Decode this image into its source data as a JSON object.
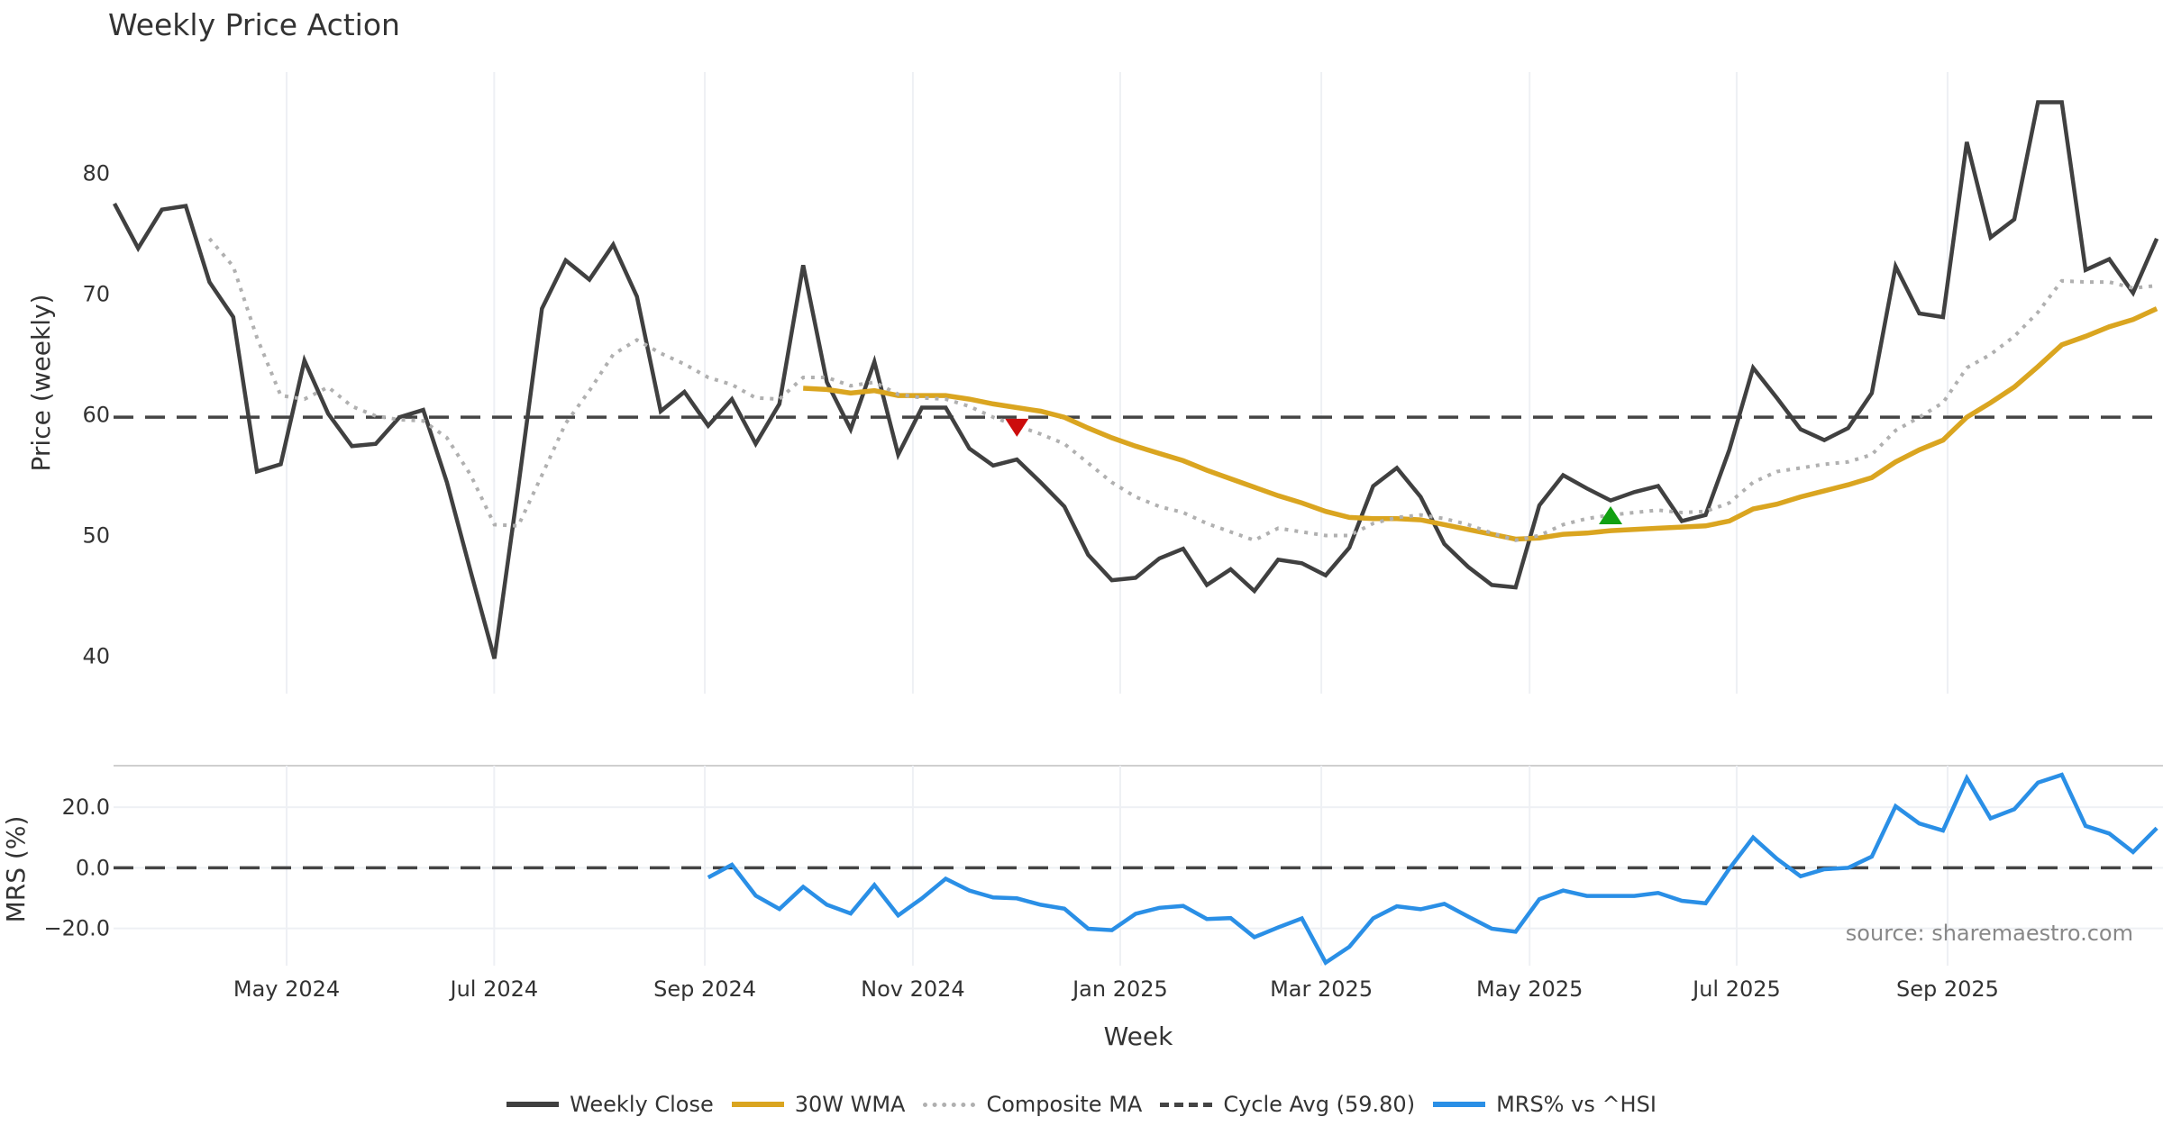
{
  "chart_data": {
    "type": "line",
    "title": "Weekly Price Action",
    "source": "source: sharemaestro.com",
    "xlabel": "Week",
    "x_index_range": [
      0,
      86
    ],
    "x_ticks": [
      {
        "label": "May 2024",
        "index": 7.25
      },
      {
        "label": "Jul 2024",
        "index": 15.99
      },
      {
        "label": "Sep 2024",
        "index": 24.86
      },
      {
        "label": "Nov 2024",
        "index": 33.62
      },
      {
        "label": "Jan 2025",
        "index": 42.35
      },
      {
        "label": "Mar 2025",
        "index": 50.82
      },
      {
        "label": "May 2025",
        "index": 59.59
      },
      {
        "label": "Jul 2025",
        "index": 68.31
      },
      {
        "label": "Sep 2025",
        "index": 77.19
      }
    ],
    "panels": [
      {
        "name": "price",
        "ylabel": "Price (weekly)",
        "ylim": [
          36.9,
          88.4
        ],
        "yticks": [
          40,
          50,
          60,
          70,
          80
        ],
        "ytick_labels": [
          "40",
          "50",
          "60",
          "70",
          "80"
        ],
        "series": [
          {
            "name": "Weekly Close",
            "style": "solid",
            "color": "#404040",
            "start_index": 0,
            "values": [
              77.5,
              73.8,
              77.0,
              77.3,
              71.0,
              68.1,
              55.3,
              55.9,
              64.5,
              60.1,
              57.4,
              57.6,
              59.8,
              60.4,
              54.4,
              47.0,
              39.8,
              54.0,
              68.8,
              72.8,
              71.2,
              74.1,
              69.8,
              60.3,
              61.9,
              59.1,
              61.3,
              57.6,
              60.9,
              72.4,
              62.7,
              58.8,
              64.4,
              56.7,
              60.6,
              60.6,
              57.2,
              55.8,
              56.3,
              54.4,
              52.4,
              48.4,
              46.3,
              46.5,
              48.1,
              48.9,
              45.9,
              47.2,
              45.4,
              48.0,
              47.7,
              46.7,
              49.0,
              54.1,
              55.6,
              53.2,
              49.3,
              47.4,
              45.9,
              45.7,
              52.5,
              55.0,
              53.9,
              52.9,
              53.6,
              54.1,
              51.2,
              51.7,
              57.1,
              63.9,
              61.4,
              58.8,
              57.9,
              58.9,
              61.8,
              72.3,
              68.4,
              68.1,
              82.6,
              74.7,
              76.2,
              85.9,
              85.9,
              72.0,
              72.9,
              70.1,
              74.6
            ]
          },
          {
            "name": "30W WMA",
            "style": "solid",
            "color": "#DAA520",
            "start_index": 29,
            "values": [
              62.2,
              62.1,
              61.8,
              62.0,
              61.6,
              61.6,
              61.6,
              61.3,
              60.9,
              60.6,
              60.3,
              59.8,
              58.9,
              58.1,
              57.4,
              56.8,
              56.2,
              55.4,
              54.7,
              54.0,
              53.3,
              52.7,
              52.0,
              51.5,
              51.4,
              51.4,
              51.3,
              50.9,
              50.5,
              50.1,
              49.7,
              49.8,
              50.1,
              50.2,
              50.4,
              50.5,
              50.6,
              50.7,
              50.8,
              51.2,
              52.2,
              52.6,
              53.2,
              53.7,
              54.2,
              54.8,
              56.1,
              57.1,
              57.9,
              59.8,
              61.0,
              62.3,
              64.0,
              65.8,
              66.5,
              67.3,
              67.9,
              68.8
            ]
          },
          {
            "name": "Composite MA",
            "style": "dotted",
            "color": "#b0b0b0",
            "start_index": 4,
            "values": [
              74.6,
              72.3,
              66.4,
              61.6,
              61.3,
              62.3,
              60.7,
              59.9,
              59.6,
              59.5,
              58.1,
              55.0,
              50.9,
              50.8,
              55.0,
              59.3,
              62.0,
              65.0,
              66.2,
              65.1,
              64.2,
              63.1,
              62.5,
              61.4,
              61.3,
              63.1,
              63.1,
              62.4,
              62.7,
              61.7,
              61.4,
              61.3,
              60.7,
              59.8,
              59.1,
              58.4,
              57.6,
              56.0,
              54.4,
              53.2,
              52.4,
              51.9,
              51.0,
              50.3,
              49.6,
              50.6,
              50.3,
              50.0,
              50.0,
              51.0,
              51.5,
              51.7,
              51.4,
              50.9,
              50.2,
              49.6,
              50.0,
              50.9,
              51.4,
              51.7,
              51.9,
              52.1,
              51.9,
              52.0,
              52.7,
              54.4,
              55.3,
              55.6,
              55.9,
              56.1,
              56.7,
              58.7,
              59.8,
              61.0,
              63.9,
              65.0,
              66.5,
              68.5,
              71.1,
              71.0,
              71.0,
              70.5,
              70.7
            ]
          }
        ],
        "hlines": [
          {
            "name": "Cycle Avg (59.80)",
            "value": 59.8,
            "style": "dashed",
            "color": "#444444"
          }
        ],
        "markers": [
          {
            "type": "sell",
            "shape": "triangle-down",
            "index": 38,
            "value": 59.0,
            "color": "#CC0C0C"
          },
          {
            "type": "buy",
            "shape": "triangle-up",
            "index": 63,
            "value": 51.6,
            "color": "#12A012"
          }
        ]
      },
      {
        "name": "mrs",
        "ylabel": "MRS (%)",
        "ylim": [
          -32.3,
          33.7
        ],
        "yticks": [
          -20,
          0,
          20
        ],
        "ytick_labels": [
          "−20.0",
          "0.0",
          "20.0"
        ],
        "series": [
          {
            "name": "MRS% vs ^HSI",
            "style": "solid",
            "color": "#2A8FE6",
            "start_index": 25,
            "values": [
              -3.2,
              1.0,
              -9.2,
              -13.6,
              -6.3,
              -12.2,
              -15.1,
              -5.7,
              -15.7,
              -10.1,
              -3.6,
              -7.5,
              -9.8,
              -10.1,
              -12.2,
              -13.5,
              -20.1,
              -20.6,
              -15.2,
              -13.2,
              -12.6,
              -16.9,
              -16.6,
              -22.9,
              -19.7,
              -16.7,
              -31.3,
              -26.1,
              -16.7,
              -12.7,
              -13.7,
              -11.9,
              -16.1,
              -20.1,
              -21.1,
              -10.4,
              -7.5,
              -9.3,
              -9.3,
              -9.3,
              -8.3,
              -10.9,
              -11.7,
              -0.3,
              10.0,
              3.0,
              -2.8,
              -0.5,
              0.0,
              3.7,
              20.3,
              14.6,
              12.3,
              29.6,
              16.3,
              19.3,
              28.1,
              30.7,
              13.8,
              11.3,
              5.2,
              13.1
            ]
          }
        ],
        "hlines": [
          {
            "name": "zero",
            "value": 0,
            "style": "dashed",
            "color": "#444444"
          }
        ]
      }
    ],
    "legend": {
      "placement": "bottom-center",
      "entries": [
        {
          "label": "Weekly Close",
          "style": "solid",
          "color": "#404040"
        },
        {
          "label": "30W WMA",
          "style": "solid",
          "color": "#DAA520"
        },
        {
          "label": "Composite MA",
          "style": "dotted",
          "color": "#b0b0b0"
        },
        {
          "label": "Cycle Avg (59.80)",
          "style": "dashed",
          "color": "#444444"
        },
        {
          "label": "MRS% vs ^HSI",
          "style": "solid",
          "color": "#2A8FE6"
        }
      ]
    },
    "grid": true
  }
}
